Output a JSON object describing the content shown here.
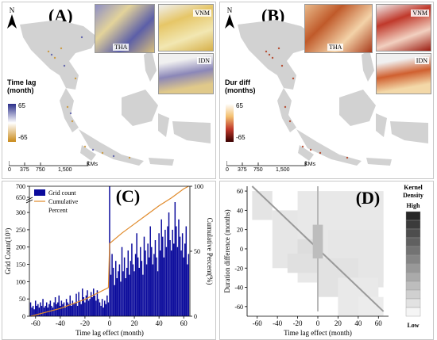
{
  "panel_a": {
    "label": "(A)",
    "north": "N",
    "legend_title": "Time lag (month)",
    "legend_max": "65",
    "legend_min": "-65",
    "insets": [
      "THA",
      "VNM",
      "IDN"
    ],
    "scale_ticks": [
      "0",
      "375",
      "750",
      "1,500"
    ],
    "scale_unit": "KMs"
  },
  "panel_b": {
    "label": "(B)",
    "north": "N",
    "legend_title": "Dur diff (months)",
    "legend_max": "65",
    "legend_min": "-65",
    "insets": [
      "THA",
      "VNM",
      "IDN"
    ],
    "scale_ticks": [
      "0",
      "375",
      "750",
      "1,500"
    ],
    "scale_unit": "KMs"
  },
  "colors": {
    "land": "#d2d2d2",
    "time_lag_high": "#3a3f9e",
    "time_lag_low": "#c98a1a",
    "dur_high": "#fff5e0",
    "dur_low": "#8b0000",
    "bar": "#0b0b9c",
    "cumulative": "#e08a2a"
  },
  "chart_data": [
    {
      "type": "bar",
      "panel_label": "(C)",
      "xlabel": "Time lag effect (month)",
      "ylabel": "Grid Count(10³)",
      "y2label": "Cumulative Percent(%)",
      "xlim": [
        -65,
        65
      ],
      "ylim": [
        0,
        700
      ],
      "y2lim": [
        0,
        100
      ],
      "axis_break": [
        350,
        650
      ],
      "x_ticks": [
        "-60",
        "-40",
        "-20",
        "0",
        "20",
        "40",
        "60"
      ],
      "y_ticks": [
        "0",
        "50",
        "100",
        "150",
        "200",
        "250",
        "300",
        "650",
        "700"
      ],
      "y2_ticks": [
        "0",
        "50",
        "100"
      ],
      "legend": [
        "Grid count",
        "Cumulative",
        "Percent"
      ],
      "legend_position": "top-left",
      "series": [
        {
          "name": "Grid count",
          "x": [
            -64,
            -63,
            -62,
            -61,
            -60,
            -59,
            -58,
            -57,
            -56,
            -55,
            -54,
            -53,
            -52,
            -51,
            -50,
            -49,
            -48,
            -47,
            -46,
            -45,
            -44,
            -43,
            -42,
            -41,
            -40,
            -39,
            -38,
            -37,
            -36,
            -35,
            -34,
            -33,
            -32,
            -31,
            -30,
            -29,
            -28,
            -27,
            -26,
            -25,
            -24,
            -23,
            -22,
            -21,
            -20,
            -19,
            -18,
            -17,
            -16,
            -15,
            -14,
            -13,
            -12,
            -11,
            -10,
            -9,
            -8,
            -7,
            -6,
            -5,
            -4,
            -3,
            -2,
            -1,
            0,
            1,
            2,
            3,
            4,
            5,
            6,
            7,
            8,
            9,
            10,
            11,
            12,
            13,
            14,
            15,
            16,
            17,
            18,
            19,
            20,
            21,
            22,
            23,
            24,
            25,
            26,
            27,
            28,
            29,
            30,
            31,
            32,
            33,
            34,
            35,
            36,
            37,
            38,
            39,
            40,
            41,
            42,
            43,
            44,
            45,
            46,
            47,
            48,
            49,
            50,
            51,
            52,
            53,
            54,
            55,
            56,
            57,
            58,
            59,
            60,
            61,
            62,
            63,
            64
          ],
          "values": [
            40,
            25,
            30,
            20,
            45,
            30,
            35,
            25,
            40,
            30,
            50,
            25,
            30,
            40,
            25,
            35,
            45,
            30,
            25,
            40,
            55,
            35,
            40,
            60,
            30,
            45,
            35,
            40,
            25,
            50,
            40,
            35,
            60,
            30,
            45,
            35,
            40,
            65,
            30,
            70,
            45,
            35,
            80,
            55,
            40,
            60,
            75,
            45,
            50,
            70,
            55,
            80,
            60,
            45,
            75,
            50,
            40,
            30,
            50,
            25,
            45,
            35,
            60,
            40,
            700,
            120,
            180,
            140,
            90,
            160,
            110,
            130,
            150,
            100,
            200,
            130,
            170,
            110,
            140,
            190,
            120,
            160,
            210,
            150,
            130,
            180,
            240,
            170,
            140,
            200,
            160,
            120,
            230,
            190,
            150,
            210,
            170,
            260,
            200,
            150,
            180,
            220,
            170,
            130,
            240,
            190,
            280,
            230,
            170,
            250,
            200,
            260,
            300,
            220,
            190,
            250,
            210,
            330,
            260,
            200,
            280,
            230,
            190,
            240,
            170,
            210,
            260,
            150,
            180
          ]
        },
        {
          "name": "Cumulative",
          "x": [
            -64,
            -40,
            -20,
            -1,
            0,
            10,
            20,
            30,
            40,
            50,
            60,
            64
          ],
          "values": [
            0,
            6,
            13,
            22,
            56,
            64,
            71,
            78,
            85,
            91,
            98,
            100
          ]
        }
      ]
    },
    {
      "type": "scatter",
      "panel_label": "(D)",
      "xlabel": "Time lag effect (month)",
      "ylabel": "Duration difference (months)",
      "xlim": [
        -70,
        70
      ],
      "ylim": [
        -70,
        65
      ],
      "x_ticks": [
        "-60",
        "-40",
        "-20",
        "0",
        "20",
        "40",
        "60"
      ],
      "y_ticks": [
        "60",
        "40",
        "20",
        "0",
        "-20",
        "-40",
        "-60"
      ],
      "colorbar_title": "Kernel Density",
      "colorbar_high": "High",
      "colorbar_low": "Low"
    }
  ]
}
